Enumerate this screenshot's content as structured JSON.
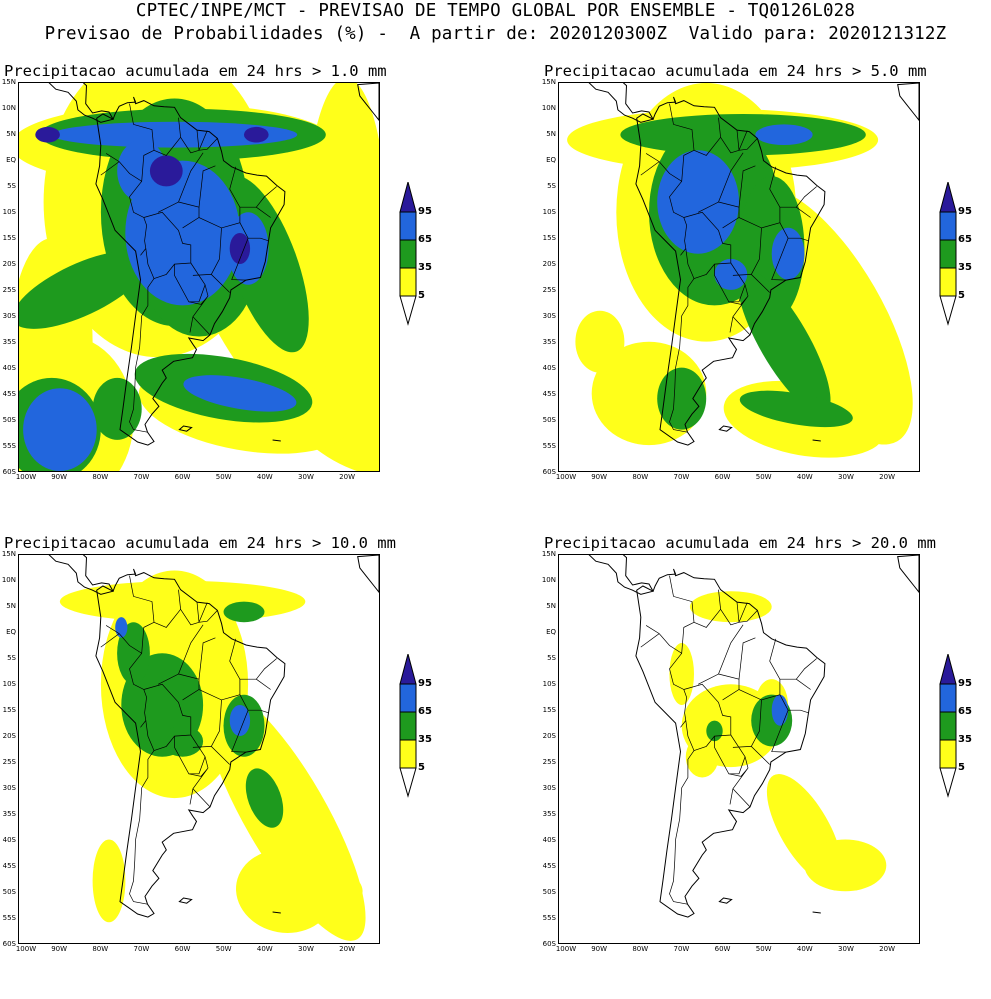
{
  "header": {
    "line1": "CPTEC/INPE/MCT - PREVISAO DE TEMPO GLOBAL POR ENSEMBLE - TQ0126L028",
    "line2": "Previsao de Probabilidades (%) -  A partir de: 2020120300Z  Valido para: 2020121312Z"
  },
  "colors": {
    "c5": "#ffff1a",
    "c35": "#1e9a1e",
    "c65": "#2266dd",
    "c95": "#2a1a9a",
    "coast": "#000000"
  },
  "legend": {
    "labels": [
      "95",
      "65",
      "35",
      "5"
    ]
  },
  "axes": {
    "lat_labels": [
      "15N",
      "10N",
      "5N",
      "EQ",
      "5S",
      "10S",
      "15S",
      "20S",
      "25S",
      "30S",
      "35S",
      "40S",
      "45S",
      "50S",
      "55S",
      "60S"
    ],
    "lon_labels": [
      "100W",
      "90W",
      "80W",
      "70W",
      "60W",
      "50W",
      "40W",
      "30W",
      "20W"
    ]
  },
  "panels": [
    {
      "title": "Precipitacao acumulada em 24 hrs > 1.0 mm"
    },
    {
      "title": "Precipitacao acumulada em 24 hrs > 5.0 mm"
    },
    {
      "title": "Precipitacao acumulada em 24 hrs > 10.0 mm"
    },
    {
      "title": "Precipitacao acumulada em 24 hrs > 20.0 mm"
    }
  ]
}
